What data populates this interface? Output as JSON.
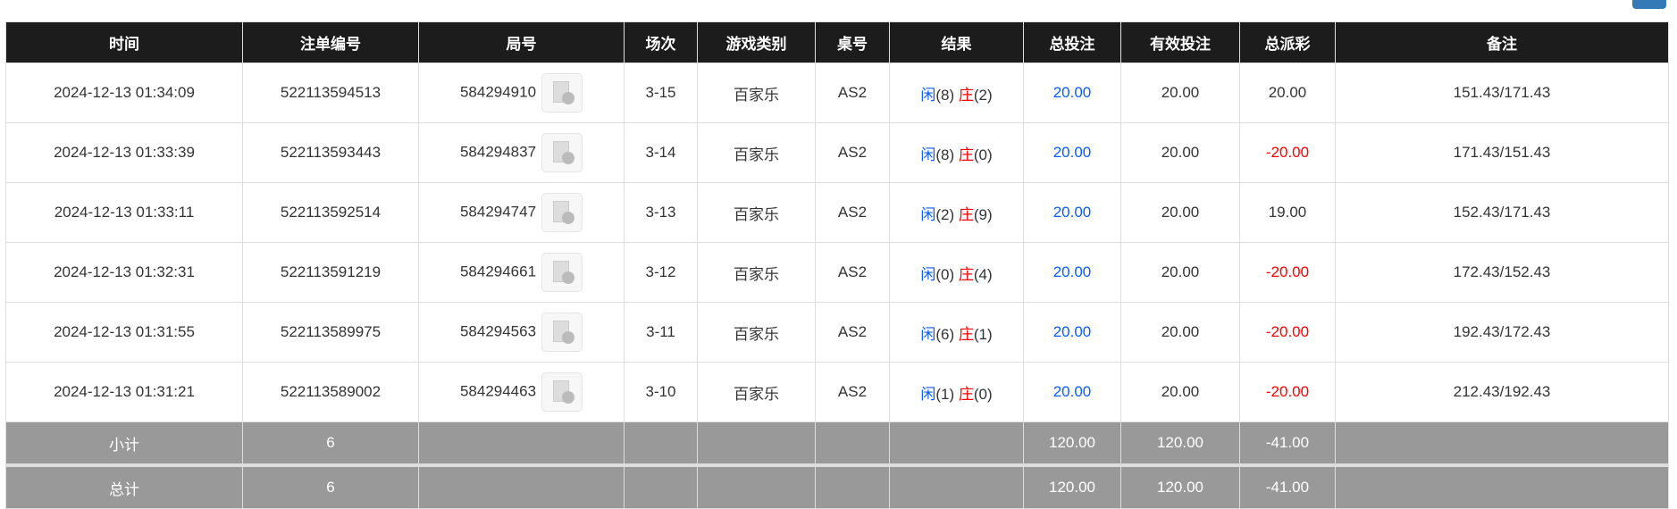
{
  "headers": [
    "时间",
    "注单编号",
    "局号",
    "场次",
    "游戏类别",
    "桌号",
    "结果",
    "总投注",
    "有效投注",
    "总派彩",
    "备注"
  ],
  "rows": [
    {
      "time": "2024-12-13 01:34:09",
      "bet_id": "522113594513",
      "round": "584294910",
      "shoe": "3-15",
      "game": "百家乐",
      "table": "AS2",
      "player": "闲",
      "player_pts": "(8)",
      "banker": "庄",
      "banker_pts": "(2)",
      "total_bet": "20.00",
      "valid_bet": "20.00",
      "payout": "20.00",
      "payout_negative": false,
      "remark": "151.43/171.43"
    },
    {
      "time": "2024-12-13 01:33:39",
      "bet_id": "522113593443",
      "round": "584294837",
      "shoe": "3-14",
      "game": "百家乐",
      "table": "AS2",
      "player": "闲",
      "player_pts": "(8)",
      "banker": "庄",
      "banker_pts": "(0)",
      "total_bet": "20.00",
      "valid_bet": "20.00",
      "payout": "-20.00",
      "payout_negative": true,
      "remark": "171.43/151.43"
    },
    {
      "time": "2024-12-13 01:33:11",
      "bet_id": "522113592514",
      "round": "584294747",
      "shoe": "3-13",
      "game": "百家乐",
      "table": "AS2",
      "player": "闲",
      "player_pts": "(2)",
      "banker": "庄",
      "banker_pts": "(9)",
      "total_bet": "20.00",
      "valid_bet": "20.00",
      "payout": "19.00",
      "payout_negative": false,
      "remark": "152.43/171.43"
    },
    {
      "time": "2024-12-13 01:32:31",
      "bet_id": "522113591219",
      "round": "584294661",
      "shoe": "3-12",
      "game": "百家乐",
      "table": "AS2",
      "player": "闲",
      "player_pts": "(0)",
      "banker": "庄",
      "banker_pts": "(4)",
      "total_bet": "20.00",
      "valid_bet": "20.00",
      "payout": "-20.00",
      "payout_negative": true,
      "remark": "172.43/152.43"
    },
    {
      "time": "2024-12-13 01:31:55",
      "bet_id": "522113589975",
      "round": "584294563",
      "shoe": "3-11",
      "game": "百家乐",
      "table": "AS2",
      "player": "闲",
      "player_pts": "(6)",
      "banker": "庄",
      "banker_pts": "(1)",
      "total_bet": "20.00",
      "valid_bet": "20.00",
      "payout": "-20.00",
      "payout_negative": true,
      "remark": "192.43/172.43"
    },
    {
      "time": "2024-12-13 01:31:21",
      "bet_id": "522113589002",
      "round": "584294463",
      "shoe": "3-10",
      "game": "百家乐",
      "table": "AS2",
      "player": "闲",
      "player_pts": "(1)",
      "banker": "庄",
      "banker_pts": "(0)",
      "total_bet": "20.00",
      "valid_bet": "20.00",
      "payout": "-20.00",
      "payout_negative": true,
      "remark": "212.43/192.43"
    }
  ],
  "summary": [
    {
      "label": "小计",
      "count": "6",
      "total_bet": "120.00",
      "valid_bet": "120.00",
      "payout": "-41.00"
    },
    {
      "label": "总计",
      "count": "6",
      "total_bet": "120.00",
      "valid_bet": "120.00",
      "payout": "-41.00"
    }
  ],
  "colors": {
    "player": "#0a5cff",
    "banker": "#ff0000",
    "negative": "#ff0000",
    "header_bg": "#1c1c1c",
    "summary_bg": "#999999"
  }
}
